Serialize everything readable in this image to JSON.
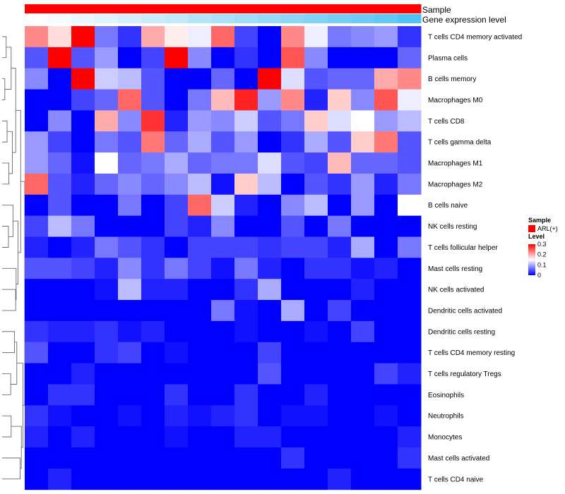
{
  "chart_data": {
    "type": "heatmap",
    "title": "",
    "rows": [
      "T cells CD4 memory activated",
      "Plasma cells",
      "B cells memory",
      "Macrophages M0",
      "T cells CD8",
      "T cells gamma delta",
      "Macrophages M1",
      "Macrophages M2",
      "B cells naive",
      "NK cells resting",
      "T cells follicular helper",
      "Mast cells resting",
      "NK cells activated",
      "Dendritic cells activated",
      "Dendritic cells resting",
      "T cells CD4 memory resting",
      "T cells regulatory  Tregs",
      "Eosinophils",
      "Neutrophils",
      "Monocytes",
      "Mast cells activated",
      "T cells CD4 naive"
    ],
    "n_columns": 17,
    "values": [
      [
        0.22,
        0.17,
        0.3,
        0.07,
        0.03,
        0.2,
        0.16,
        0.14,
        0.24,
        0.04,
        0.0,
        0.22,
        0.14,
        0.07,
        0.08,
        0.09,
        0.03
      ],
      [
        0.05,
        0.3,
        0.05,
        0.09,
        0.0,
        0.04,
        0.3,
        0.08,
        0.0,
        0.03,
        0.0,
        0.25,
        0.08,
        0.0,
        0.0,
        0.0,
        0.06
      ],
      [
        0.08,
        0.0,
        0.3,
        0.12,
        0.11,
        0.05,
        0.0,
        0.0,
        0.06,
        0.0,
        0.3,
        0.13,
        0.05,
        0.06,
        0.06,
        0.2,
        0.22
      ],
      [
        0.0,
        0.0,
        0.04,
        0.06,
        0.24,
        0.05,
        0.0,
        0.07,
        0.19,
        0.28,
        0.09,
        0.22,
        0.02,
        0.18,
        0.08,
        0.25,
        0.14
      ],
      [
        0.0,
        0.08,
        0.0,
        0.2,
        0.08,
        0.27,
        0.02,
        0.09,
        0.08,
        0.12,
        0.05,
        0.07,
        0.18,
        0.13,
        0.15,
        0.09,
        0.11
      ],
      [
        0.09,
        0.04,
        0.0,
        0.07,
        0.05,
        0.23,
        0.06,
        0.1,
        0.05,
        0.09,
        0.0,
        0.03,
        0.1,
        0.05,
        0.18,
        0.23,
        0.05
      ],
      [
        0.09,
        0.06,
        0.01,
        0.15,
        0.06,
        0.07,
        0.1,
        0.06,
        0.07,
        0.07,
        0.13,
        0.05,
        0.04,
        0.19,
        0.06,
        0.06,
        0.05
      ],
      [
        0.24,
        0.05,
        0.02,
        0.06,
        0.08,
        0.06,
        0.08,
        0.11,
        0.01,
        0.18,
        0.11,
        0.0,
        0.05,
        0.03,
        0.09,
        0.02,
        0.07
      ],
      [
        0.0,
        0.05,
        0.0,
        0.0,
        0.07,
        0.0,
        0.04,
        0.24,
        0.12,
        0.02,
        0.0,
        0.08,
        0.11,
        0.0,
        0.09,
        0.0,
        0.15
      ],
      [
        0.04,
        0.11,
        0.07,
        0.0,
        0.0,
        0.0,
        0.04,
        0.02,
        0.08,
        0.0,
        0.0,
        0.05,
        0.0,
        0.07,
        0.0,
        0.0,
        0.0
      ],
      [
        0.02,
        0.0,
        0.02,
        0.07,
        0.05,
        0.03,
        0.0,
        0.04,
        0.04,
        0.04,
        0.03,
        0.04,
        0.04,
        0.02,
        0.1,
        0.0,
        0.07
      ],
      [
        0.05,
        0.05,
        0.04,
        0.02,
        0.08,
        0.03,
        0.07,
        0.04,
        0.01,
        0.07,
        0.02,
        0.0,
        0.03,
        0.03,
        0.01,
        0.02,
        0.0
      ],
      [
        0.0,
        0.0,
        0.0,
        0.01,
        0.11,
        0.02,
        0.02,
        0.0,
        0.0,
        0.03,
        0.1,
        0.0,
        0.0,
        0.0,
        0.02,
        0.0,
        0.0
      ],
      [
        0.0,
        0.0,
        0.0,
        0.0,
        0.0,
        0.0,
        0.0,
        0.0,
        0.07,
        0.01,
        0.0,
        0.1,
        0.0,
        0.04,
        0.0,
        0.0,
        0.0
      ],
      [
        0.03,
        0.02,
        0.02,
        0.03,
        0.01,
        0.02,
        0.0,
        0.0,
        0.0,
        0.01,
        0.0,
        0.0,
        0.01,
        0.0,
        0.04,
        0.0,
        0.0
      ],
      [
        0.05,
        0.0,
        0.0,
        0.03,
        0.04,
        0.0,
        0.01,
        0.0,
        0.0,
        0.0,
        0.04,
        0.0,
        0.0,
        0.0,
        0.0,
        0.0,
        0.0
      ],
      [
        0.0,
        0.0,
        0.02,
        0.0,
        0.0,
        0.0,
        0.0,
        0.0,
        0.0,
        0.0,
        0.05,
        0.0,
        0.0,
        0.0,
        0.0,
        0.04,
        0.02
      ],
      [
        0.0,
        0.03,
        0.03,
        0.0,
        0.0,
        0.0,
        0.03,
        0.0,
        0.0,
        0.03,
        0.0,
        0.0,
        0.02,
        0.0,
        0.0,
        0.0,
        0.0
      ],
      [
        0.03,
        0.01,
        0.0,
        0.0,
        0.01,
        0.0,
        0.02,
        0.01,
        0.02,
        0.03,
        0.0,
        0.01,
        0.01,
        0.0,
        0.0,
        0.01,
        0.0
      ],
      [
        0.02,
        0.0,
        0.02,
        0.0,
        0.0,
        0.0,
        0.01,
        0.0,
        0.0,
        0.02,
        0.02,
        0.0,
        0.0,
        0.0,
        0.0,
        0.0,
        0.02
      ],
      [
        0.0,
        0.0,
        0.0,
        0.0,
        0.0,
        0.0,
        0.0,
        0.0,
        0.0,
        0.0,
        0.0,
        0.03,
        0.0,
        0.0,
        0.0,
        0.0,
        0.03
      ],
      [
        0.0,
        0.02,
        0.0,
        0.0,
        0.0,
        0.0,
        0.0,
        0.0,
        0.0,
        0.0,
        0.0,
        0.0,
        0.0,
        0.02,
        0.0,
        0.0,
        0.0
      ]
    ],
    "color_scale": {
      "min": 0,
      "mid": 0.15,
      "max": 0.3,
      "low_color": "#0000FF",
      "mid_color": "#FFFFFF",
      "high_color": "#FF0000"
    },
    "top_annotations": [
      {
        "name": "Sample",
        "type": "categorical",
        "values": [
          "ARL(+)",
          "ARL(+)",
          "ARL(+)",
          "ARL(+)",
          "ARL(+)",
          "ARL(+)",
          "ARL(+)",
          "ARL(+)",
          "ARL(+)",
          "ARL(+)",
          "ARL(+)",
          "ARL(+)",
          "ARL(+)",
          "ARL(+)",
          "ARL(+)",
          "ARL(+)",
          "ARL(+)"
        ]
      },
      {
        "name": "Gene expression level",
        "type": "gradient",
        "values": [
          0.0,
          0.06,
          0.12,
          0.18,
          0.24,
          0.3,
          0.36,
          0.42,
          0.48,
          0.54,
          0.6,
          0.66,
          0.72,
          0.78,
          0.84,
          0.9,
          1.0
        ],
        "low_color": "#FFFFFF",
        "high_color": "#4FC1F2"
      }
    ],
    "legend": {
      "placement": "right",
      "sample_title": "Sample",
      "sample_entries": [
        {
          "label": "ARL(+)",
          "color": "#FF0000"
        }
      ],
      "level_title": "Level",
      "ticks": [
        {
          "value": 0.3,
          "label": "0.3"
        },
        {
          "value": 0.2,
          "label": "0.2"
        },
        {
          "value": 0.1,
          "label": "0.1"
        },
        {
          "value": 0,
          "label": "0"
        }
      ]
    },
    "row_dendrogram": true
  }
}
